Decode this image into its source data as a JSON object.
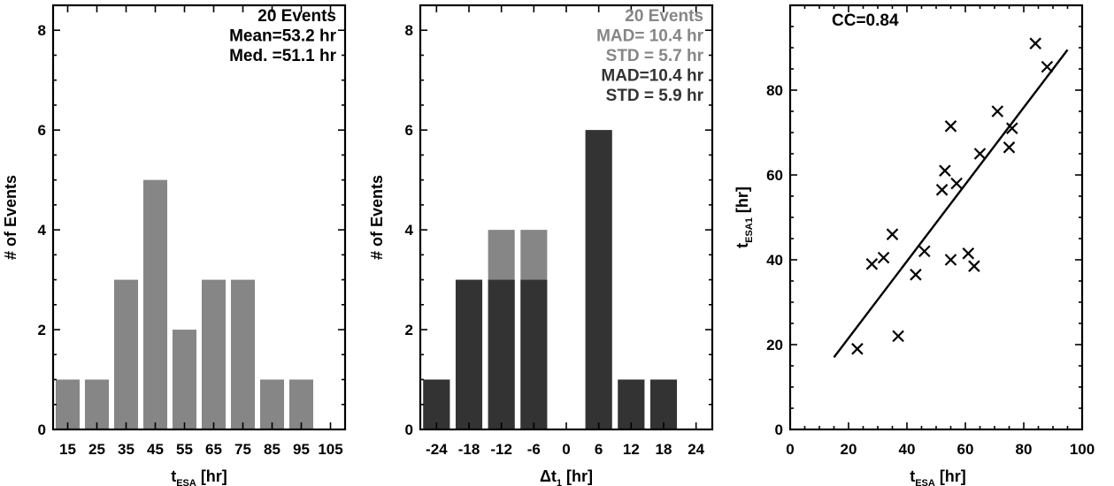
{
  "chart_data": [
    {
      "type": "bar",
      "xlabel": "t_ESA [hr]",
      "xlabel_main": "t",
      "xlabel_sub": "ESA",
      "xlabel_unit": " [hr]",
      "ylabel": "# of Events",
      "ylim": [
        0,
        8.5
      ],
      "yticks": [
        0,
        2,
        4,
        6,
        8
      ],
      "categories": [
        "15",
        "25",
        "35",
        "45",
        "55",
        "65",
        "75",
        "85",
        "95",
        "105"
      ],
      "values": [
        1,
        1,
        3,
        5,
        2,
        3,
        3,
        1,
        1,
        0
      ],
      "bar_color": "#868686",
      "stats": [
        "20 Events",
        "Mean=53.2 hr",
        "Med. =51.1 hr"
      ],
      "stats_colors": [
        "#000000",
        "#000000",
        "#000000"
      ]
    },
    {
      "type": "bar",
      "xlabel": "Δt_1 [hr]",
      "xlabel_main": "Δt",
      "xlabel_sub": "1",
      "xlabel_unit": " [hr]",
      "ylabel": "# of Events",
      "ylim": [
        0,
        8.5
      ],
      "yticks": [
        0,
        2,
        4,
        6,
        8
      ],
      "categories": [
        "-24",
        "-18",
        "-12",
        "-6",
        "0",
        "6",
        "12",
        "18",
        "24"
      ],
      "series": [
        {
          "color": "#868686",
          "values": [
            1,
            3,
            4,
            4,
            0,
            6,
            1,
            1,
            0
          ]
        },
        {
          "color": "#333333",
          "values": [
            1,
            3,
            3,
            3,
            0,
            6,
            1,
            1,
            0
          ]
        }
      ],
      "stats": [
        "20 Events",
        "MAD= 10.4 hr",
        "STD =  5.7 hr",
        "MAD=10.4 hr",
        "STD =  5.9 hr"
      ],
      "stats_colors": [
        "#868686",
        "#868686",
        "#868686",
        "#333333",
        "#333333"
      ]
    },
    {
      "type": "scatter",
      "xlabel": "t_ESA [hr]",
      "xlabel_main": "t",
      "xlabel_sub": "ESA",
      "xlabel_unit": " [hr]",
      "ylabel": "t_ESA1 [hr]",
      "ylabel_main": "t",
      "ylabel_sub": "ESA1",
      "ylabel_unit": " [hr]",
      "xlim": [
        0,
        100
      ],
      "ylim": [
        0,
        100
      ],
      "xticks": [
        0,
        20,
        40,
        60,
        80,
        100
      ],
      "yticks": [
        0,
        20,
        40,
        60,
        80
      ],
      "annotation": "CC=0.84",
      "points": [
        [
          23,
          19
        ],
        [
          28,
          39
        ],
        [
          32,
          40.5
        ],
        [
          35,
          46
        ],
        [
          37,
          22
        ],
        [
          43,
          36.5
        ],
        [
          46,
          42
        ],
        [
          52,
          56.5
        ],
        [
          53,
          61
        ],
        [
          55,
          40
        ],
        [
          55,
          71.5
        ],
        [
          57,
          58
        ],
        [
          61,
          41.5
        ],
        [
          63,
          38.5
        ],
        [
          65,
          65
        ],
        [
          71,
          75
        ],
        [
          75,
          66.5
        ],
        [
          76,
          71
        ],
        [
          84,
          91
        ],
        [
          88,
          85.5
        ]
      ],
      "fit_line": [
        [
          15,
          17
        ],
        [
          95,
          89.5
        ]
      ]
    }
  ]
}
